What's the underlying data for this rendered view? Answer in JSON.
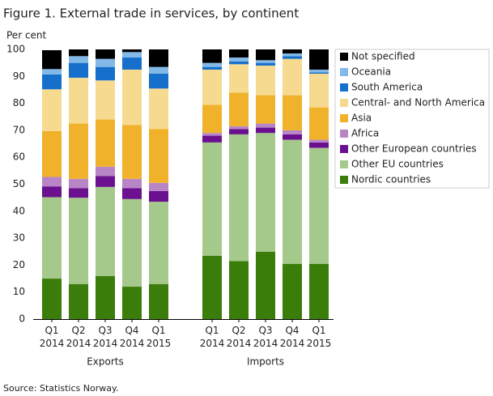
{
  "chart_data": {
    "type": "stacked_bar",
    "title": "Figure 1. External trade in services, by continent",
    "y_label": "Per cent",
    "source": "Source: Statistics Norway.",
    "categories": [
      "Q1 2014",
      "Q2 2014",
      "Q3 2014",
      "Q4 2014",
      "Q1 2015",
      null,
      "Q1 2014",
      "Q2 2014",
      "Q3 2014",
      "Q4 2014",
      "Q1 2015"
    ],
    "group_labels": [
      "Exports",
      "Imports"
    ],
    "ylim": [
      0,
      100
    ],
    "yticks": [
      0,
      10,
      20,
      30,
      40,
      50,
      60,
      70,
      80,
      90,
      100
    ],
    "grid": false,
    "series": [
      {
        "name": "Nordic countries",
        "color": "#3a7d0a",
        "values": [
          15,
          13,
          16,
          12,
          13,
          null,
          23.5,
          21.5,
          25,
          20.5,
          20.5
        ]
      },
      {
        "name": "Other EU countries",
        "color": "#a5c98b",
        "values": [
          30.2,
          32,
          33,
          32.5,
          30.5,
          null,
          42,
          47,
          44,
          46,
          43
        ]
      },
      {
        "name": "Other European countries",
        "color": "#6b118f",
        "values": [
          4,
          3.5,
          4,
          4,
          4,
          null,
          2.5,
          2,
          2,
          2,
          2
        ]
      },
      {
        "name": "Africa",
        "color": "#b886c7",
        "values": [
          3.5,
          3.5,
          3.5,
          3.5,
          3,
          null,
          1,
          1,
          1.5,
          1.5,
          1
        ]
      },
      {
        "name": "Asia",
        "color": "#f0b22a",
        "values": [
          17,
          20.5,
          17.5,
          20,
          20,
          null,
          10.5,
          12.5,
          10.5,
          13,
          12
        ]
      },
      {
        "name": "Central- and North America",
        "color": "#f6da90",
        "values": [
          15.5,
          17,
          14.5,
          20.5,
          15,
          null,
          13,
          10.5,
          11,
          13.5,
          12.5
        ]
      },
      {
        "name": "South America",
        "color": "#1670cb",
        "values": [
          5.5,
          5.5,
          5,
          4.5,
          5.5,
          null,
          1,
          1,
          1,
          1,
          0.5
        ]
      },
      {
        "name": "Oceania",
        "color": "#82b9e8",
        "values": [
          2,
          2.5,
          3,
          2,
          2.5,
          null,
          1.5,
          1.5,
          1,
          1,
          1
        ]
      },
      {
        "name": "Not specified",
        "color": "#000000",
        "values": [
          7,
          2.5,
          3.5,
          1,
          6.5,
          null,
          5,
          3,
          4,
          1.5,
          7.5
        ]
      }
    ]
  }
}
